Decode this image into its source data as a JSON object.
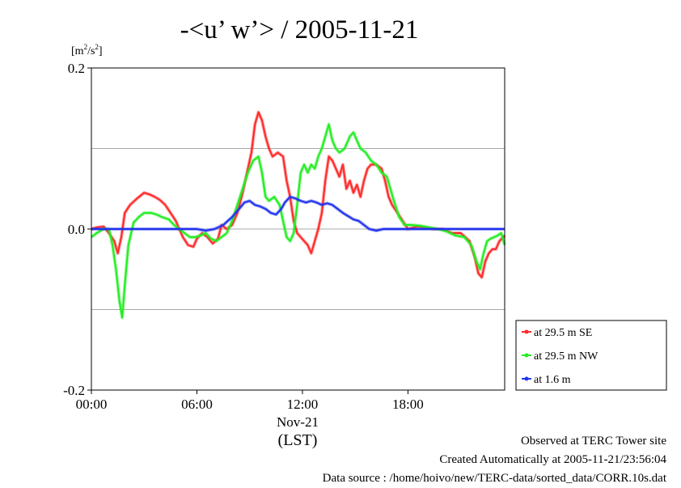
{
  "chart_data": {
    "type": "line",
    "title": "-<u’ w’> / 2005-11-21",
    "ylabel_base": "[m",
    "ylabel_mid": "/s",
    "ylabel_end": "]",
    "ylabel_sup1": "2",
    "ylabel_sup2": "2",
    "ylim": [
      -0.2,
      0.2
    ],
    "xlim_hours": [
      0,
      23.5
    ],
    "y_ticks": [
      {
        "value": 0.2,
        "label": "0.2"
      },
      {
        "value": 0.0,
        "label": "0.0"
      },
      {
        "value": -0.2,
        "label": "-0.2"
      }
    ],
    "y_gridlines": [
      0.1,
      0.0,
      -0.1
    ],
    "x_ticks": [
      {
        "value": 0,
        "label": "00:00"
      },
      {
        "value": 6,
        "label": "06:00"
      },
      {
        "value": 12,
        "label": "12:00"
      },
      {
        "value": 18,
        "label": "18:00"
      }
    ],
    "x_date_label": "Nov-21",
    "x_axis_label": "(LST)",
    "legend_position": "right",
    "series": [
      {
        "name": "at 29.5 m SE",
        "color": "#ff2a2a",
        "points": [
          [
            0.0,
            0.0
          ],
          [
            0.3,
            0.002
          ],
          [
            0.7,
            0.003
          ],
          [
            1.0,
            -0.005
          ],
          [
            1.3,
            -0.015
          ],
          [
            1.5,
            -0.03
          ],
          [
            1.7,
            -0.01
          ],
          [
            1.9,
            0.02
          ],
          [
            2.2,
            0.03
          ],
          [
            2.6,
            0.038
          ],
          [
            3.0,
            0.045
          ],
          [
            3.3,
            0.043
          ],
          [
            3.6,
            0.04
          ],
          [
            3.9,
            0.036
          ],
          [
            4.2,
            0.03
          ],
          [
            4.5,
            0.02
          ],
          [
            4.8,
            0.01
          ],
          [
            5.0,
            0.0
          ],
          [
            5.2,
            -0.01
          ],
          [
            5.5,
            -0.02
          ],
          [
            5.8,
            -0.022
          ],
          [
            6.0,
            -0.012
          ],
          [
            6.3,
            -0.005
          ],
          [
            6.6,
            -0.01
          ],
          [
            6.9,
            -0.018
          ],
          [
            7.2,
            -0.012
          ],
          [
            7.4,
            0.005
          ],
          [
            7.7,
            0.0
          ],
          [
            8.0,
            0.005
          ],
          [
            8.3,
            0.02
          ],
          [
            8.6,
            0.045
          ],
          [
            8.9,
            0.075
          ],
          [
            9.1,
            0.095
          ],
          [
            9.3,
            0.13
          ],
          [
            9.5,
            0.145
          ],
          [
            9.7,
            0.135
          ],
          [
            9.9,
            0.115
          ],
          [
            10.1,
            0.1
          ],
          [
            10.3,
            0.09
          ],
          [
            10.6,
            0.095
          ],
          [
            10.9,
            0.09
          ],
          [
            11.1,
            0.06
          ],
          [
            11.3,
            0.04
          ],
          [
            11.5,
            0.01
          ],
          [
            11.7,
            -0.005
          ],
          [
            11.9,
            -0.01
          ],
          [
            12.1,
            -0.015
          ],
          [
            12.3,
            -0.02
          ],
          [
            12.5,
            -0.03
          ],
          [
            12.7,
            -0.015
          ],
          [
            12.9,
            0.0
          ],
          [
            13.1,
            0.02
          ],
          [
            13.3,
            0.06
          ],
          [
            13.5,
            0.09
          ],
          [
            13.7,
            0.085
          ],
          [
            13.9,
            0.075
          ],
          [
            14.1,
            0.065
          ],
          [
            14.3,
            0.08
          ],
          [
            14.5,
            0.05
          ],
          [
            14.7,
            0.06
          ],
          [
            14.9,
            0.045
          ],
          [
            15.1,
            0.055
          ],
          [
            15.3,
            0.04
          ],
          [
            15.5,
            0.06
          ],
          [
            15.7,
            0.075
          ],
          [
            15.9,
            0.08
          ],
          [
            16.2,
            0.08
          ],
          [
            16.5,
            0.075
          ],
          [
            16.7,
            0.06
          ],
          [
            16.9,
            0.04
          ],
          [
            17.1,
            0.03
          ],
          [
            17.4,
            0.02
          ],
          [
            17.7,
            0.01
          ],
          [
            18.0,
            0.0
          ],
          [
            18.5,
            0.003
          ],
          [
            19.0,
            0.002
          ],
          [
            19.5,
            0.0
          ],
          [
            20.0,
            0.0
          ],
          [
            20.5,
            -0.005
          ],
          [
            21.0,
            -0.005
          ],
          [
            21.5,
            -0.015
          ],
          [
            21.8,
            -0.035
          ],
          [
            22.0,
            -0.055
          ],
          [
            22.2,
            -0.06
          ],
          [
            22.4,
            -0.04
          ],
          [
            22.6,
            -0.03
          ],
          [
            22.8,
            -0.025
          ],
          [
            23.0,
            -0.025
          ],
          [
            23.2,
            -0.015
          ],
          [
            23.5,
            -0.008
          ]
        ]
      },
      {
        "name": "at 29.5 m NW",
        "color": "#22ee22",
        "points": [
          [
            0.0,
            -0.01
          ],
          [
            0.3,
            -0.005
          ],
          [
            0.7,
            0.0
          ],
          [
            1.0,
            0.0
          ],
          [
            1.2,
            -0.02
          ],
          [
            1.4,
            -0.05
          ],
          [
            1.6,
            -0.09
          ],
          [
            1.75,
            -0.11
          ],
          [
            1.9,
            -0.07
          ],
          [
            2.1,
            -0.02
          ],
          [
            2.4,
            0.008
          ],
          [
            2.7,
            0.015
          ],
          [
            3.0,
            0.02
          ],
          [
            3.4,
            0.02
          ],
          [
            3.7,
            0.018
          ],
          [
            4.0,
            0.015
          ],
          [
            4.4,
            0.012
          ],
          [
            4.7,
            0.005
          ],
          [
            5.0,
            0.0
          ],
          [
            5.3,
            -0.005
          ],
          [
            5.6,
            -0.01
          ],
          [
            5.9,
            -0.01
          ],
          [
            6.2,
            -0.008
          ],
          [
            6.5,
            -0.005
          ],
          [
            6.8,
            -0.012
          ],
          [
            7.1,
            -0.015
          ],
          [
            7.4,
            -0.01
          ],
          [
            7.7,
            -0.005
          ],
          [
            8.0,
            0.01
          ],
          [
            8.3,
            0.03
          ],
          [
            8.6,
            0.05
          ],
          [
            8.9,
            0.07
          ],
          [
            9.2,
            0.085
          ],
          [
            9.5,
            0.09
          ],
          [
            9.7,
            0.07
          ],
          [
            9.9,
            0.04
          ],
          [
            10.1,
            0.035
          ],
          [
            10.4,
            0.04
          ],
          [
            10.7,
            0.03
          ],
          [
            10.9,
            0.01
          ],
          [
            11.1,
            -0.01
          ],
          [
            11.3,
            -0.015
          ],
          [
            11.5,
            -0.005
          ],
          [
            11.7,
            0.03
          ],
          [
            11.9,
            0.07
          ],
          [
            12.1,
            0.08
          ],
          [
            12.3,
            0.07
          ],
          [
            12.5,
            0.08
          ],
          [
            12.7,
            0.075
          ],
          [
            12.9,
            0.09
          ],
          [
            13.1,
            0.1
          ],
          [
            13.3,
            0.115
          ],
          [
            13.5,
            0.13
          ],
          [
            13.7,
            0.11
          ],
          [
            13.9,
            0.1
          ],
          [
            14.1,
            0.095
          ],
          [
            14.4,
            0.1
          ],
          [
            14.7,
            0.115
          ],
          [
            14.9,
            0.12
          ],
          [
            15.1,
            0.11
          ],
          [
            15.3,
            0.1
          ],
          [
            15.6,
            0.095
          ],
          [
            15.9,
            0.085
          ],
          [
            16.2,
            0.08
          ],
          [
            16.5,
            0.07
          ],
          [
            16.8,
            0.065
          ],
          [
            17.0,
            0.05
          ],
          [
            17.2,
            0.035
          ],
          [
            17.5,
            0.015
          ],
          [
            17.8,
            0.005
          ],
          [
            18.2,
            0.005
          ],
          [
            18.7,
            0.004
          ],
          [
            19.2,
            0.002
          ],
          [
            19.7,
            0.0
          ],
          [
            20.2,
            -0.003
          ],
          [
            20.7,
            -0.008
          ],
          [
            21.2,
            -0.01
          ],
          [
            21.6,
            -0.02
          ],
          [
            21.9,
            -0.04
          ],
          [
            22.1,
            -0.05
          ],
          [
            22.3,
            -0.03
          ],
          [
            22.5,
            -0.015
          ],
          [
            22.7,
            -0.012
          ],
          [
            22.9,
            -0.01
          ],
          [
            23.1,
            -0.008
          ],
          [
            23.3,
            -0.005
          ],
          [
            23.5,
            -0.02
          ]
        ]
      },
      {
        "name": "at 1.6 m",
        "color": "#2233ee",
        "points": [
          [
            0.0,
            0.0
          ],
          [
            1.0,
            0.0
          ],
          [
            2.0,
            0.0
          ],
          [
            3.0,
            0.0
          ],
          [
            4.0,
            0.0
          ],
          [
            5.0,
            0.0
          ],
          [
            5.5,
            0.0
          ],
          [
            6.0,
            0.0
          ],
          [
            6.5,
            -0.002
          ],
          [
            7.0,
            0.0
          ],
          [
            7.5,
            0.005
          ],
          [
            8.0,
            0.015
          ],
          [
            8.4,
            0.025
          ],
          [
            8.7,
            0.033
          ],
          [
            9.0,
            0.035
          ],
          [
            9.3,
            0.03
          ],
          [
            9.6,
            0.028
          ],
          [
            9.9,
            0.025
          ],
          [
            10.2,
            0.02
          ],
          [
            10.5,
            0.018
          ],
          [
            10.8,
            0.025
          ],
          [
            11.0,
            0.033
          ],
          [
            11.3,
            0.04
          ],
          [
            11.6,
            0.038
          ],
          [
            11.9,
            0.035
          ],
          [
            12.2,
            0.033
          ],
          [
            12.5,
            0.035
          ],
          [
            12.8,
            0.033
          ],
          [
            13.1,
            0.03
          ],
          [
            13.4,
            0.032
          ],
          [
            13.7,
            0.03
          ],
          [
            14.0,
            0.025
          ],
          [
            14.3,
            0.02
          ],
          [
            14.6,
            0.016
          ],
          [
            14.9,
            0.012
          ],
          [
            15.2,
            0.01
          ],
          [
            15.5,
            0.005
          ],
          [
            15.8,
            0.0
          ],
          [
            16.2,
            -0.002
          ],
          [
            16.6,
            0.0
          ],
          [
            17.0,
            0.0
          ],
          [
            18.0,
            0.0
          ],
          [
            19.0,
            0.0
          ],
          [
            20.0,
            0.0
          ],
          [
            21.0,
            0.0
          ],
          [
            22.0,
            0.0
          ],
          [
            23.0,
            0.0
          ],
          [
            23.5,
            0.0
          ]
        ]
      }
    ]
  },
  "footer": {
    "line1": "Observed at TERC Tower site",
    "line2": "Created Automatically at 2005-11-21/23:56:04",
    "line3": "Data source : /home/hoivo/new/TERC-data/sorted_data/CORR.10s.dat"
  }
}
